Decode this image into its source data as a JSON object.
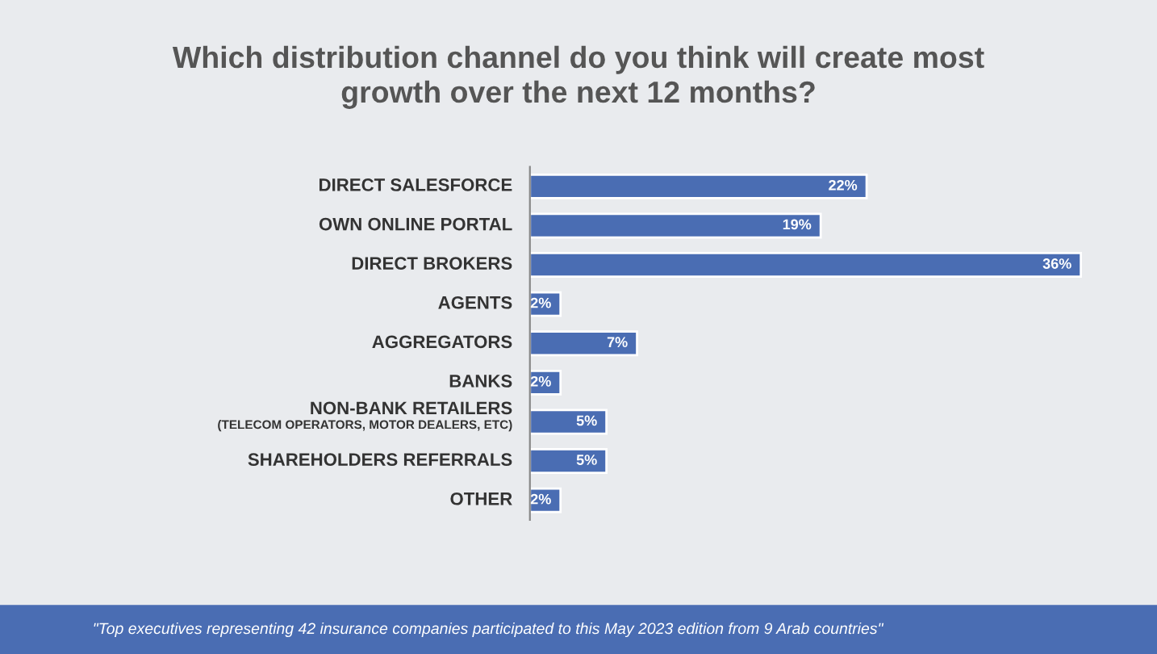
{
  "chart_data": {
    "type": "bar",
    "orientation": "horizontal",
    "title": "Which distribution channel do you think will create most\ngrowth over the next 12 months?",
    "categories": [
      "DIRECT SALESFORCE",
      "OWN ONLINE PORTAL",
      "DIRECT BROKERS",
      "AGENTS",
      "AGGREGATORS",
      "BANKS",
      "NON-BANK RETAILERS\n(TELECOM OPERATORS, MOTOR DEALERS, ETC)",
      "SHAREHOLDERS REFERRALS",
      "OTHER"
    ],
    "values": [
      22,
      19,
      36,
      2,
      7,
      2,
      5,
      5,
      2
    ],
    "value_labels": [
      "22%",
      "19%",
      "36%",
      "2%",
      "7%",
      "2%",
      "5%",
      "5%",
      "2%"
    ],
    "color": "#4a6db3",
    "grid": false,
    "legend": false,
    "annotations": [
      "\"Top executives representing 42 insurance companies participated to this May 2023 edition from 9 Arab countries\""
    ]
  }
}
